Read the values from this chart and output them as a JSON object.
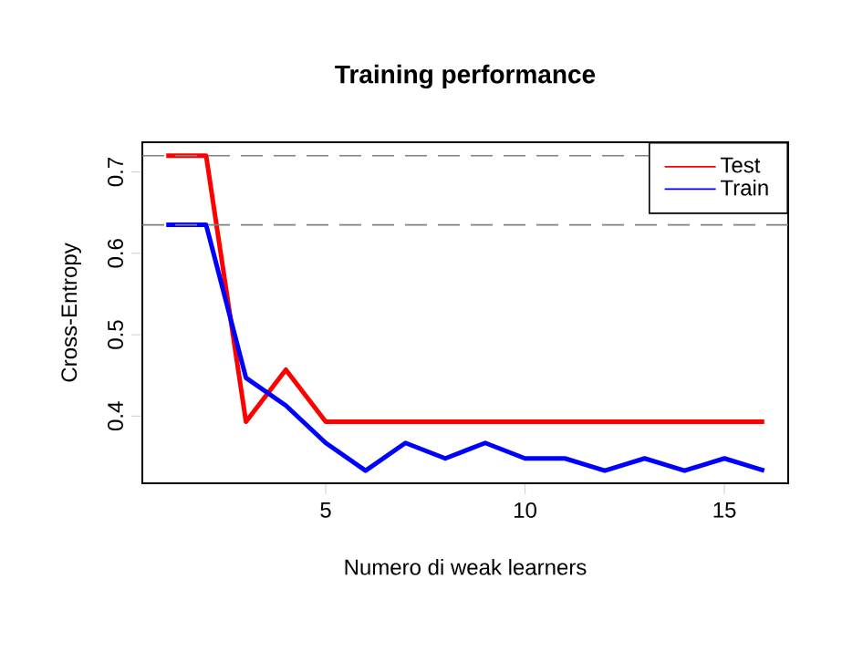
{
  "chart_data": {
    "type": "line",
    "title": "Training performance",
    "xlabel": "Numero di weak learners",
    "ylabel": "Cross-Entropy",
    "x": [
      1,
      2,
      3,
      4,
      5,
      6,
      7,
      8,
      9,
      10,
      11,
      12,
      13,
      14,
      15,
      16
    ],
    "series": [
      {
        "name": "Test",
        "color": "#ff0000",
        "values": [
          0.72,
          0.72,
          0.393,
          0.457,
          0.393,
          0.393,
          0.393,
          0.393,
          0.393,
          0.393,
          0.393,
          0.393,
          0.393,
          0.393,
          0.393,
          0.393
        ]
      },
      {
        "name": "Train",
        "color": "#0000ff",
        "values": [
          0.635,
          0.635,
          0.447,
          0.413,
          0.367,
          0.333,
          0.367,
          0.348,
          0.367,
          0.348,
          0.348,
          0.333,
          0.348,
          0.333,
          0.348,
          0.333
        ]
      }
    ],
    "xlim": [
      0.4,
      16.6
    ],
    "ylim": [
      0.3175,
      0.7365
    ],
    "xticks": [
      5,
      10,
      15
    ],
    "yticks": [
      0.4,
      0.5,
      0.6,
      0.7
    ],
    "ref_lines": [
      {
        "axis": "y",
        "value": 0.72,
        "color": "#808080",
        "line_style": "dashed"
      },
      {
        "axis": "y",
        "value": 0.635,
        "color": "#808080",
        "line_style": "dashed"
      }
    ],
    "legend": "top right",
    "grid": false,
    "marker": "none",
    "line_style": "solid"
  }
}
